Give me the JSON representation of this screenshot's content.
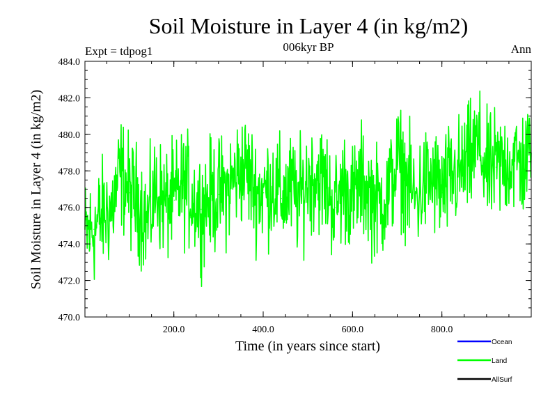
{
  "chart_data": {
    "type": "line",
    "title": "Soil Moisture in Layer 4 (in kg/m2)",
    "subtitle": "006kyr BP",
    "experiment_label": "Expt = tdpog1",
    "season_label": "Ann",
    "xlabel": "Time (in years since start)",
    "ylabel": "Soil Moisture in Layer 4 (in kg/m2)",
    "xlim": [
      1,
      1000
    ],
    "ylim": [
      470,
      484
    ],
    "x_ticks": [
      200,
      400,
      600,
      800
    ],
    "x_tick_labels": [
      "200.0",
      "400.0",
      "600.0",
      "800.0"
    ],
    "y_ticks": [
      470,
      472,
      474,
      476,
      478,
      480,
      482,
      484
    ],
    "y_tick_labels": [
      "470.0",
      "472.0",
      "474.0",
      "476.0",
      "478.0",
      "480.0",
      "482.0",
      "484.0"
    ],
    "legend": {
      "position": "bottom-right",
      "entries": [
        {
          "name": "Ocean",
          "color": "#0000ff"
        },
        {
          "name": "Land",
          "color": "#00ff00"
        },
        {
          "name": "AllSurf",
          "color": "#000000"
        }
      ]
    },
    "series": [
      {
        "name": "Land",
        "color": "#00ff00",
        "x": [
          1,
          21,
          41,
          61,
          81,
          101,
          121,
          141,
          161,
          181,
          201,
          221,
          241,
          261,
          281,
          301,
          321,
          341,
          361,
          381,
          401,
          421,
          441,
          461,
          481,
          501,
          521,
          541,
          561,
          581,
          601,
          621,
          641,
          661,
          681,
          701,
          721,
          741,
          761,
          781,
          801,
          821,
          841,
          861,
          881,
          901,
          921,
          941,
          961,
          981,
          1000
        ],
        "values": [
          474.5,
          474.8,
          475.6,
          475.9,
          478.0,
          476.8,
          476.3,
          475.2,
          477.0,
          476.1,
          476.4,
          477.2,
          476.6,
          475.9,
          476.6,
          476.7,
          477.0,
          477.8,
          478.2,
          477.0,
          476.8,
          477.3,
          476.5,
          477.0,
          476.4,
          477.6,
          477.8,
          477.2,
          476.0,
          477.3,
          476.4,
          477.5,
          476.6,
          476.2,
          476.8,
          478.6,
          477.5,
          476.4,
          477.3,
          477.5,
          476.8,
          477.6,
          477.9,
          478.5,
          479.5,
          477.9,
          478.2,
          478.4,
          478.6,
          478.3,
          479.0
        ]
      }
    ]
  }
}
